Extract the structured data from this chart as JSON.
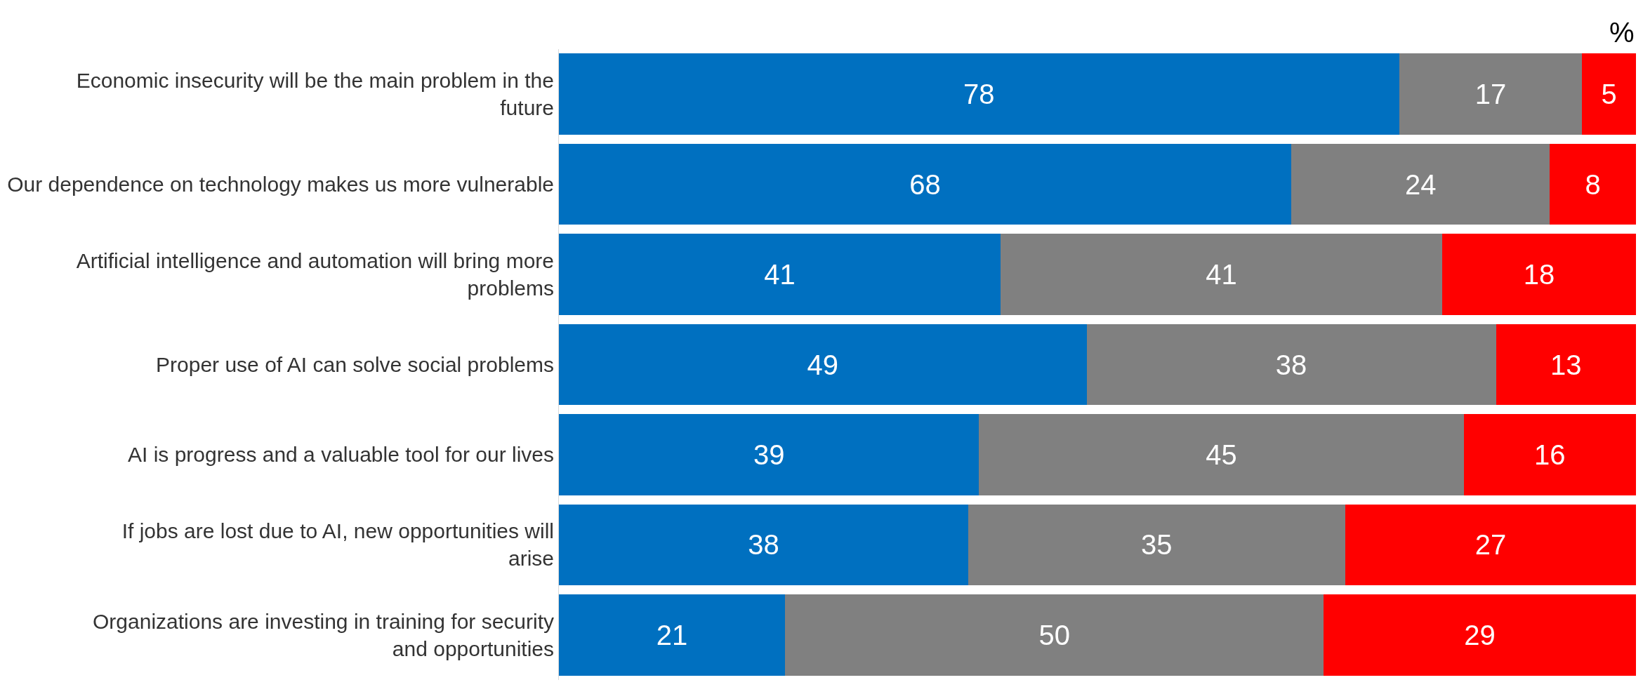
{
  "chart_data": {
    "type": "bar",
    "orientation": "horizontal",
    "stacked": true,
    "data_labels": true,
    "tick_labels": "y",
    "xlim": [
      0,
      100
    ],
    "annotations": [
      "%"
    ],
    "categories": [
      "Economic insecurity will be the main problem in the future",
      "Our dependence on technology makes us more vulnerable",
      "Artificial intelligence and automation will bring more problems",
      "Proper use of AI can solve social problems",
      "AI is progress and a valuable tool for our lives",
      "If jobs are lost due to AI, new opportunities will arise",
      "Organizations are investing in training for security and opportunities"
    ],
    "series": [
      {
        "color": "#0070c0",
        "values": [
          78,
          68,
          41,
          49,
          39,
          38,
          21
        ]
      },
      {
        "color": "#808080",
        "values": [
          17,
          24,
          41,
          38,
          45,
          35,
          50
        ]
      },
      {
        "color": "#ff0000",
        "values": [
          5,
          8,
          18,
          13,
          16,
          27,
          29
        ]
      }
    ]
  }
}
